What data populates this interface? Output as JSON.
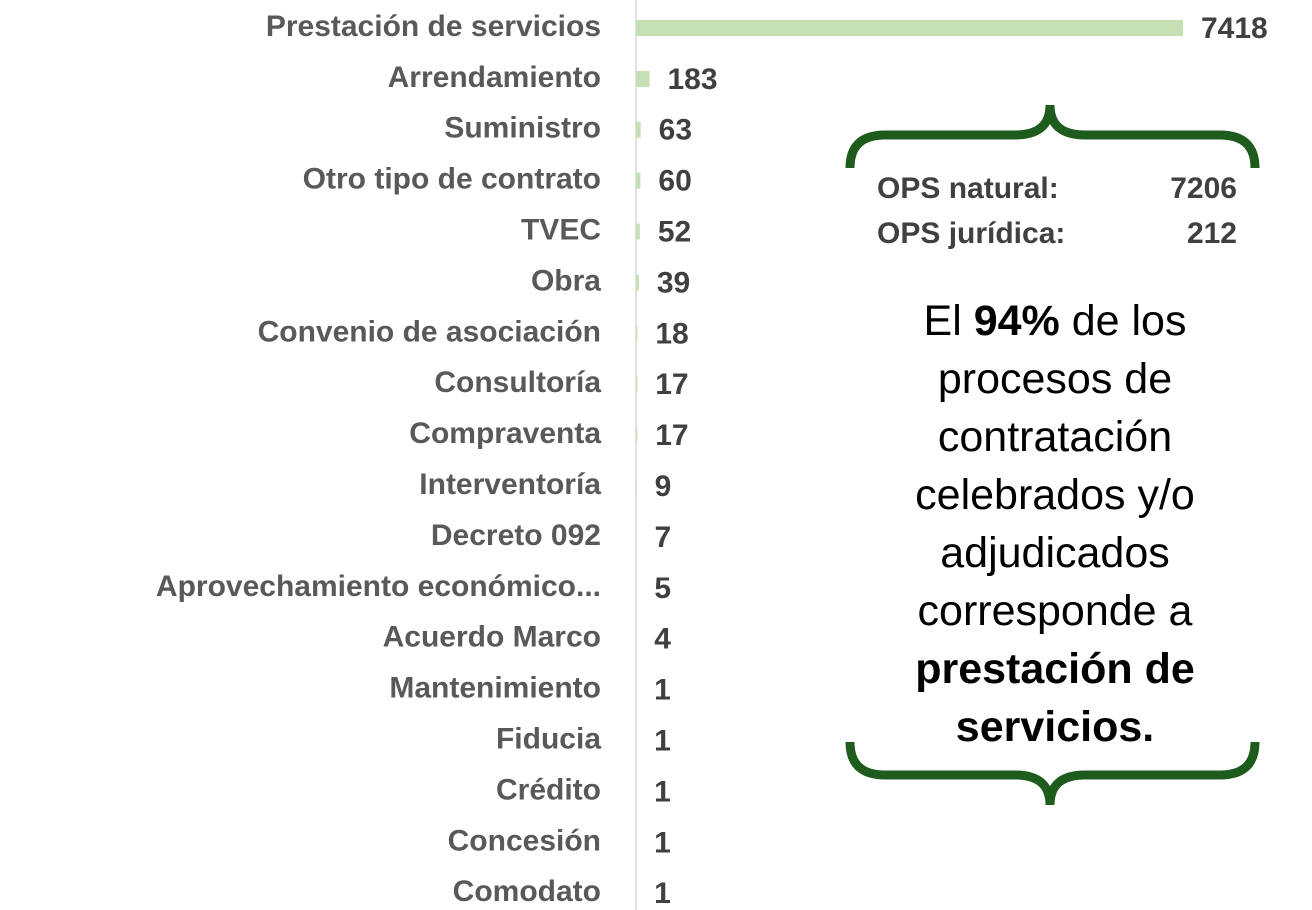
{
  "chart_data": {
    "type": "barh",
    "categories": [
      "Prestación de servicios",
      "Arrendamiento",
      "Suministro",
      "Otro tipo de contrato",
      "TVEC",
      "Obra",
      "Convenio de asociación",
      "Consultoría",
      "Compraventa",
      "Interventoría",
      "Decreto 092",
      "Aprovechamiento económico...",
      "Acuerdo Marco",
      "Mantenimiento",
      "Fiducia",
      "Crédito",
      "Concesión",
      "Comodato"
    ],
    "values": [
      7418,
      183,
      63,
      60,
      52,
      39,
      18,
      17,
      17,
      9,
      7,
      5,
      4,
      1,
      1,
      1,
      1,
      1
    ],
    "color": "#c5e0b4",
    "annotations": {
      "ops": [
        {
          "label": "OPS natural:",
          "value": 7206
        },
        {
          "label": "OPS jurídica:",
          "value": 212
        }
      ],
      "note": [
        {
          "text": "El ",
          "bold": false
        },
        {
          "text": "94%",
          "bold": true
        },
        {
          "text": " de los procesos de contratación celebrados y/o adjudicados corresponde a ",
          "bold": false
        },
        {
          "text": "prestación de servicios.",
          "bold": true
        }
      ]
    }
  }
}
